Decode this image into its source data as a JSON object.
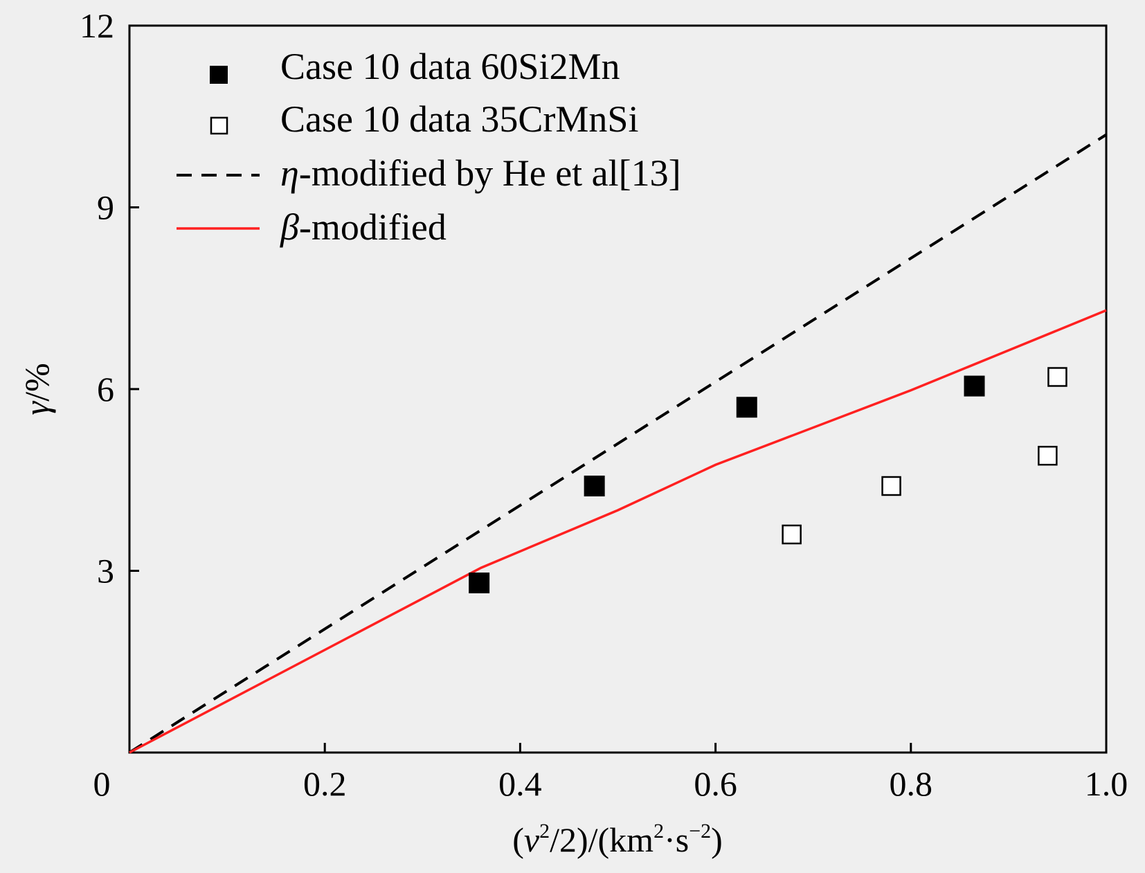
{
  "chart_data": {
    "type": "scatter",
    "xlabel": {
      "pre": "(",
      "v": "v",
      "sup1": "2",
      "mid": "/2)/(km",
      "sup2": "2",
      "dot": "·s",
      "sup3": "−2",
      "post": ")"
    },
    "ylabel": {
      "gamma": "γ",
      "unit": "/%"
    },
    "xlim": [
      0,
      1.0
    ],
    "ylim": [
      0,
      12
    ],
    "xticks": [
      {
        "value": 0,
        "label": "0"
      },
      {
        "value": 0.2,
        "label": "0.2"
      },
      {
        "value": 0.4,
        "label": "0.4"
      },
      {
        "value": 0.6,
        "label": "0.6"
      },
      {
        "value": 0.8,
        "label": "0.8"
      },
      {
        "value": 1.0,
        "label": "1.0"
      }
    ],
    "yticks": [
      {
        "value": 3,
        "label": "3"
      },
      {
        "value": 6,
        "label": "6"
      },
      {
        "value": 9,
        "label": "9"
      },
      {
        "value": 12,
        "label": "12"
      }
    ],
    "grid": false,
    "legend_position": "top-left",
    "series": [
      {
        "name": "Case 10 data 60Si2Mn",
        "kind": "points",
        "marker": "filled-square",
        "color": "#000000",
        "points": [
          [
            0.358,
            2.8
          ],
          [
            0.476,
            4.4
          ],
          [
            0.632,
            5.7
          ],
          [
            0.865,
            6.05
          ]
        ]
      },
      {
        "name": "Case 10 data 35CrMnSi",
        "kind": "points",
        "marker": "open-square",
        "color": "#000000",
        "points": [
          [
            0.678,
            3.6
          ],
          [
            0.78,
            4.4
          ],
          [
            0.95,
            6.2
          ],
          [
            0.94,
            4.9
          ]
        ]
      },
      {
        "name_symbol": "η",
        "name": "-modified by He et al[13]",
        "kind": "line",
        "style": "dashed",
        "color": "#000000",
        "points": [
          [
            0,
            0
          ],
          [
            1.0,
            10.2
          ]
        ]
      },
      {
        "name_symbol": "β",
        "name": "-modified",
        "kind": "line",
        "style": "solid",
        "color": "#ff2020",
        "points": [
          [
            0,
            0
          ],
          [
            0.36,
            3.05
          ],
          [
            0.5,
            4.0
          ],
          [
            0.6,
            4.75
          ],
          [
            0.8,
            5.98
          ],
          [
            1.0,
            7.3
          ]
        ]
      }
    ]
  }
}
